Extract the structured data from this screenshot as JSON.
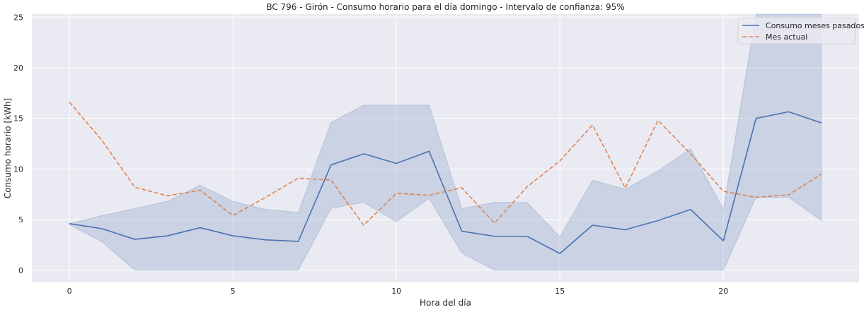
{
  "chart_data": {
    "type": "line",
    "title": "BC 796 - Girón - Consumo horario para el día domingo - Intervalo de confianza: 95%",
    "xlabel": "Hora del día",
    "ylabel": "Consumo horario [kWh]",
    "x": [
      0,
      1,
      2,
      3,
      4,
      5,
      6,
      7,
      8,
      9,
      10,
      11,
      12,
      13,
      14,
      15,
      16,
      17,
      18,
      19,
      20,
      21,
      22,
      23
    ],
    "xlim": [
      -1.15,
      24.15
    ],
    "ylim": [
      -1.2,
      25.3
    ],
    "xticks": [
      0,
      5,
      10,
      15,
      20
    ],
    "yticks": [
      0,
      5,
      10,
      15,
      20,
      25
    ],
    "grid": true,
    "legend_position": "top-right",
    "background_color": "#eaeaf2",
    "grid_color": "#ffffff",
    "series": [
      {
        "name": "Consumo meses pasados",
        "style": "solid",
        "color": "#4c72b0",
        "values": [
          4.6,
          4.1,
          3.05,
          3.4,
          4.2,
          3.4,
          3.0,
          2.85,
          10.4,
          11.5,
          10.55,
          11.75,
          3.85,
          3.35,
          3.35,
          1.65,
          4.45,
          4.0,
          4.9,
          6.0,
          2.9,
          15.0,
          15.65,
          14.55
        ],
        "ci_lower": [
          4.5,
          2.8,
          0.0,
          0.0,
          0.0,
          0.0,
          0.0,
          0.0,
          6.1,
          6.7,
          4.8,
          7.1,
          1.7,
          0.0,
          0.0,
          0.0,
          0.0,
          0.0,
          0.0,
          0.0,
          0.0,
          7.2,
          7.2,
          4.9
        ],
        "ci_upper": [
          4.6,
          5.4,
          6.1,
          6.8,
          8.4,
          6.8,
          6.0,
          5.7,
          14.6,
          16.3,
          16.3,
          16.3,
          6.1,
          6.7,
          6.7,
          3.3,
          8.9,
          8.0,
          9.8,
          12.0,
          6.0,
          25.3,
          25.3,
          25.3
        ]
      },
      {
        "name": "Mes actual",
        "style": "dashed",
        "color": "#dd8452",
        "values": [
          16.6,
          12.8,
          8.2,
          7.35,
          7.9,
          5.4,
          7.2,
          9.1,
          8.9,
          4.45,
          7.6,
          7.4,
          8.15,
          4.65,
          8.25,
          10.8,
          14.35,
          8.1,
          14.8,
          11.5,
          7.8,
          7.2,
          7.45,
          9.5
        ]
      }
    ]
  }
}
